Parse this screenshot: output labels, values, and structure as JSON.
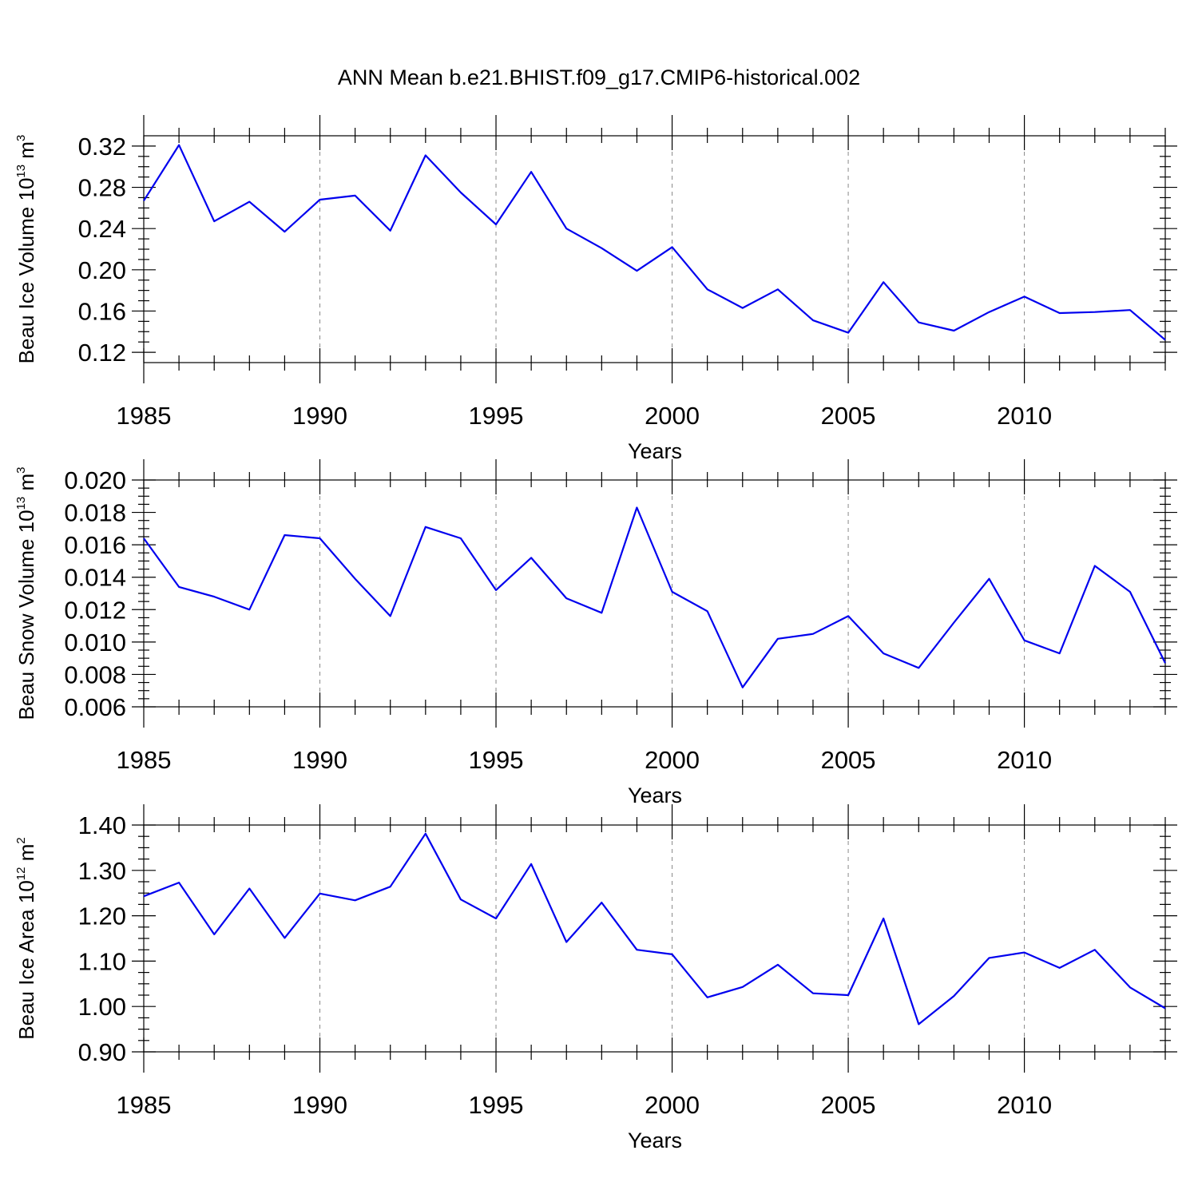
{
  "title": "ANN Mean b.e21.BHIST.f09_g17.CMIP6-historical.002",
  "colors": {
    "line": "#0000ee",
    "grid": "#888888",
    "axis": "#000000"
  },
  "chart_data": [
    {
      "type": "line",
      "xlabel": "Years",
      "ylabel_base": "Beau Ice Volume 10",
      "ylabel_exp": "13",
      "ylabel_unit": " m",
      "ylabel_unit_exp": "3",
      "xlim": [
        1985,
        2014
      ],
      "ylim": [
        0.11,
        0.33
      ],
      "x_ticks": [
        1985,
        1990,
        1995,
        2000,
        2005,
        2010
      ],
      "x_tick_labels": [
        "1985",
        "1990",
        "1995",
        "2000",
        "2005",
        "2010"
      ],
      "y_ticks": [
        0.12,
        0.16,
        0.2,
        0.24,
        0.28,
        0.32
      ],
      "y_tick_labels": [
        "0.12",
        "0.16",
        "0.20",
        "0.24",
        "0.28",
        "0.32"
      ],
      "grid": "vertical dashed at major x ticks",
      "x": [
        1985,
        1986,
        1987,
        1988,
        1989,
        1990,
        1991,
        1992,
        1993,
        1994,
        1995,
        1996,
        1997,
        1998,
        1999,
        2000,
        2001,
        2002,
        2003,
        2004,
        2005,
        2006,
        2007,
        2008,
        2009,
        2010,
        2011,
        2012,
        2013,
        2014
      ],
      "values": [
        0.267,
        0.321,
        0.247,
        0.266,
        0.237,
        0.268,
        0.272,
        0.238,
        0.311,
        0.275,
        0.244,
        0.295,
        0.24,
        0.221,
        0.199,
        0.222,
        0.181,
        0.163,
        0.181,
        0.151,
        0.139,
        0.188,
        0.149,
        0.141,
        0.159,
        0.174,
        0.158,
        0.159,
        0.161,
        0.132
      ]
    },
    {
      "type": "line",
      "xlabel": "Years",
      "ylabel_base": "Beau Snow Volume 10",
      "ylabel_exp": "13",
      "ylabel_unit": " m",
      "ylabel_unit_exp": "3",
      "xlim": [
        1985,
        2014
      ],
      "ylim": [
        0.006,
        0.02
      ],
      "x_ticks": [
        1985,
        1990,
        1995,
        2000,
        2005,
        2010
      ],
      "x_tick_labels": [
        "1985",
        "1990",
        "1995",
        "2000",
        "2005",
        "2010"
      ],
      "y_ticks": [
        0.006,
        0.008,
        0.01,
        0.012,
        0.014,
        0.016,
        0.018,
        0.02
      ],
      "y_tick_labels": [
        "0.006",
        "0.008",
        "0.010",
        "0.012",
        "0.014",
        "0.016",
        "0.018",
        "0.020"
      ],
      "grid": "vertical dashed at major x ticks",
      "x": [
        1985,
        1986,
        1987,
        1988,
        1989,
        1990,
        1991,
        1992,
        1993,
        1994,
        1995,
        1996,
        1997,
        1998,
        1999,
        2000,
        2001,
        2002,
        2003,
        2004,
        2005,
        2006,
        2007,
        2008,
        2009,
        2010,
        2011,
        2012,
        2013,
        2014
      ],
      "values": [
        0.0164,
        0.0134,
        0.0128,
        0.012,
        0.0166,
        0.0164,
        0.0139,
        0.0116,
        0.0171,
        0.0164,
        0.0132,
        0.0152,
        0.0127,
        0.0118,
        0.0183,
        0.0131,
        0.0119,
        0.0072,
        0.0102,
        0.0105,
        0.0116,
        0.0093,
        0.0084,
        0.0112,
        0.0139,
        0.0101,
        0.0093,
        0.0147,
        0.0131,
        0.0087
      ]
    },
    {
      "type": "line",
      "xlabel": "Years",
      "ylabel_base": "Beau Ice Area 10",
      "ylabel_exp": "12",
      "ylabel_unit": " m",
      "ylabel_unit_exp": "2",
      "xlim": [
        1985,
        2014
      ],
      "ylim": [
        0.9,
        1.4
      ],
      "x_ticks": [
        1985,
        1990,
        1995,
        2000,
        2005,
        2010
      ],
      "x_tick_labels": [
        "1985",
        "1990",
        "1995",
        "2000",
        "2005",
        "2010"
      ],
      "y_ticks": [
        0.9,
        1.0,
        1.1,
        1.2,
        1.3,
        1.4
      ],
      "y_tick_labels": [
        "0.90",
        "1.00",
        "1.10",
        "1.20",
        "1.30",
        "1.40"
      ],
      "grid": "vertical dashed at major x ticks",
      "x": [
        1985,
        1986,
        1987,
        1988,
        1989,
        1990,
        1991,
        1992,
        1993,
        1994,
        1995,
        1996,
        1997,
        1998,
        1999,
        2000,
        2001,
        2002,
        2003,
        2004,
        2005,
        2006,
        2007,
        2008,
        2009,
        2010,
        2011,
        2012,
        2013,
        2014
      ],
      "values": [
        1.243,
        1.273,
        1.159,
        1.26,
        1.151,
        1.249,
        1.234,
        1.264,
        1.381,
        1.236,
        1.194,
        1.314,
        1.142,
        1.229,
        1.125,
        1.115,
        1.02,
        1.043,
        1.092,
        1.029,
        1.025,
        1.194,
        0.961,
        1.023,
        1.107,
        1.119,
        1.085,
        1.125,
        1.042,
        0.996
      ]
    }
  ]
}
